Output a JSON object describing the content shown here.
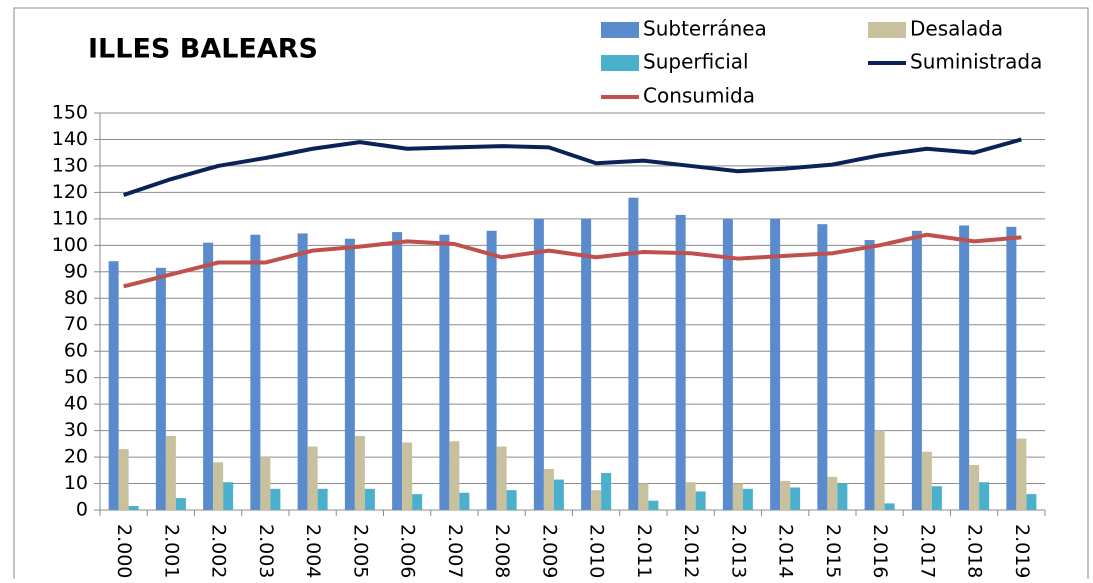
{
  "chart_data": {
    "type": "bar",
    "title": "ILLES BALEARS",
    "categories": [
      "2.000",
      "2.001",
      "2.002",
      "2.003",
      "2.004",
      "2.005",
      "2.006",
      "2.007",
      "2.008",
      "2.009",
      "2.010",
      "2.011",
      "2.012",
      "2.013",
      "2.014",
      "2.015",
      "2.016",
      "2.017",
      "2.018",
      "2.019"
    ],
    "series": [
      {
        "name": "Subterránea",
        "type": "bar",
        "color": "#5a8bcd",
        "values": [
          94,
          91.5,
          101,
          104,
          104.5,
          102.5,
          105,
          104,
          105.5,
          110,
          110,
          118,
          111.5,
          110,
          110,
          108,
          102,
          105.5,
          107.5,
          107
        ]
      },
      {
        "name": "Desalada",
        "type": "bar",
        "color": "#c9c19d",
        "values": [
          23,
          28,
          18,
          20,
          24,
          28,
          25.5,
          26,
          24,
          15.5,
          7.5,
          10,
          10.5,
          10,
          11,
          12.5,
          30,
          22,
          17,
          27
        ]
      },
      {
        "name": "Superficial",
        "type": "bar",
        "color": "#4bb0cc",
        "values": [
          1.5,
          4.5,
          10.5,
          8,
          8,
          8,
          6,
          6.5,
          7.5,
          11.5,
          14,
          3.5,
          7,
          8,
          8.5,
          10,
          2.5,
          9,
          10.5,
          6
        ]
      },
      {
        "name": "Suministrada",
        "type": "line",
        "color": "#0b2258",
        "values": [
          119,
          125,
          130,
          133,
          136.5,
          139,
          136.5,
          137,
          137.5,
          137,
          131,
          132,
          130,
          128,
          129,
          130.5,
          134,
          136.5,
          135,
          140
        ]
      },
      {
        "name": "Consumida",
        "type": "line",
        "color": "#c0504d",
        "values": [
          84.5,
          89,
          93.5,
          93.5,
          98,
          99.5,
          101.5,
          100.5,
          95.5,
          98,
          95.5,
          97.5,
          97,
          95,
          96,
          97,
          100,
          104,
          101.5,
          103
        ]
      }
    ],
    "ylim": [
      0,
      150
    ],
    "yticks": [
      0,
      10,
      20,
      30,
      40,
      50,
      60,
      70,
      80,
      90,
      100,
      110,
      120,
      130,
      140,
      150
    ],
    "grid": true
  }
}
